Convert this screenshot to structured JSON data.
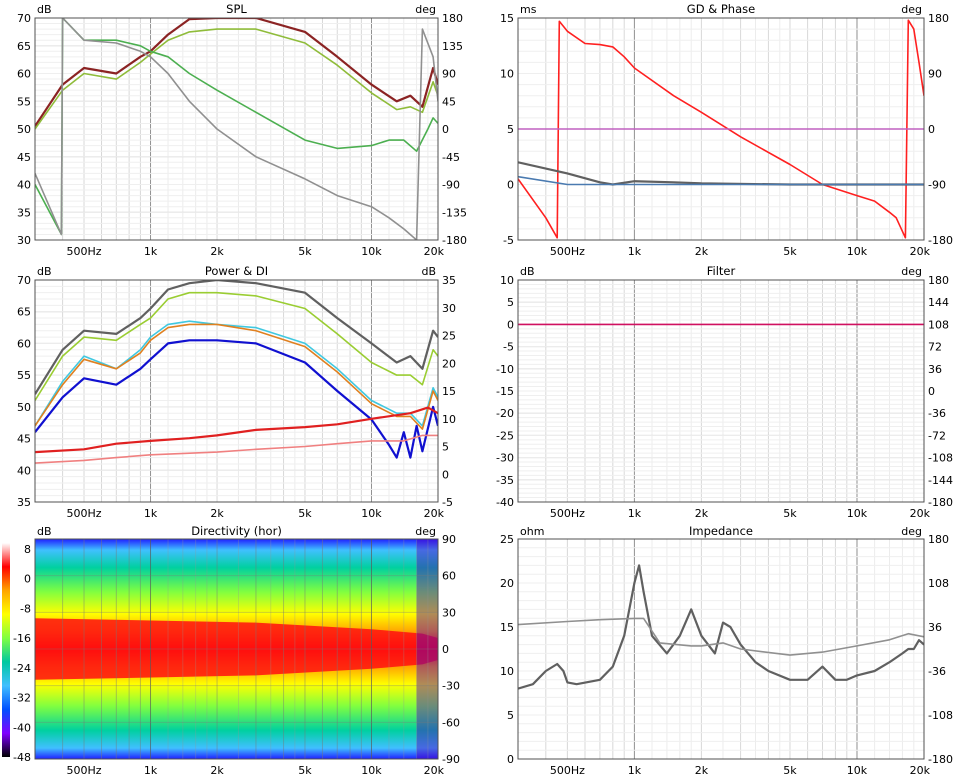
{
  "chart_data": [
    {
      "id": "spl",
      "type": "line",
      "title": "SPL",
      "ylabel": "dB",
      "y2label": "deg",
      "xscale": "log",
      "xlim": [
        300,
        20000
      ],
      "ylim": [
        30,
        70
      ],
      "y2lim": [
        -180,
        180
      ],
      "xticks": [
        "500Hz",
        "1k",
        "2k",
        "5k",
        "10k",
        "20k"
      ],
      "yticks": [
        "70",
        "65",
        "60",
        "55",
        "50",
        "45",
        "40",
        "35",
        "30"
      ],
      "y2ticks": [
        "180",
        "135",
        "90",
        "45",
        "0",
        "-45",
        "-90",
        "-135",
        "-180"
      ],
      "grid": true,
      "series": [
        {
          "color": "#8b2323",
          "axis": "y",
          "x": [
            300,
            400,
            500,
            700,
            900,
            1000,
            1200,
            1500,
            2000,
            3000,
            5000,
            7000,
            10000,
            13000,
            15000,
            17000,
            19000,
            20000
          ],
          "values": [
            50.5,
            58,
            61,
            60,
            63,
            64,
            67,
            69.8,
            70,
            70,
            67.5,
            63,
            58,
            55,
            56,
            54,
            61,
            58
          ]
        },
        {
          "color": "#8fbc3a",
          "axis": "y",
          "x": [
            300,
            400,
            500,
            700,
            900,
            1000,
            1200,
            1500,
            2000,
            3000,
            5000,
            7000,
            10000,
            13000,
            15000,
            17000,
            19000,
            20000
          ],
          "values": [
            50,
            57,
            60,
            59,
            62,
            63.5,
            66,
            67.5,
            68,
            68,
            65.5,
            61.5,
            56.5,
            53.5,
            54,
            53,
            58.5,
            56
          ]
        },
        {
          "color": "#4caf50",
          "axis": "y",
          "x": [
            300,
            395,
            400,
            500,
            700,
            900,
            1000,
            1200,
            1500,
            2000,
            3000,
            5000,
            7000,
            10000,
            12000,
            14000,
            16000,
            18000,
            19000,
            20000
          ],
          "values": [
            40,
            31,
            70,
            66,
            66,
            65,
            64,
            63,
            60,
            57,
            53,
            48,
            46.5,
            47,
            48,
            48,
            46,
            50,
            52,
            51
          ]
        },
        {
          "color": "#909090",
          "axis": "y",
          "x": [
            300,
            395,
            400,
            500,
            700,
            900,
            1000,
            1200,
            1500,
            2000,
            3000,
            5000,
            7000,
            10000,
            12000,
            14000,
            16000,
            17000,
            19000,
            20000
          ],
          "values": [
            42,
            31,
            70,
            66,
            65.5,
            64,
            63,
            60,
            55,
            50,
            45,
            41,
            38,
            36,
            34,
            32,
            30,
            68,
            63,
            55
          ]
        }
      ]
    },
    {
      "id": "gd_phase",
      "type": "line",
      "title": "GD & Phase",
      "ylabel": "ms",
      "y2label": "deg",
      "xscale": "log",
      "xlim": [
        300,
        20000
      ],
      "ylim": [
        -5,
        15
      ],
      "y2lim": [
        -180,
        180
      ],
      "xticks": [
        "500Hz",
        "1k",
        "2k",
        "5k",
        "10k",
        "20k"
      ],
      "yticks": [
        "15",
        "10",
        "5",
        "0",
        "-5"
      ],
      "y2ticks": [
        "180",
        "90",
        "0",
        "-90",
        "-180"
      ],
      "grid": true,
      "series": [
        {
          "color": "#ff2020",
          "axis": "y",
          "x": [
            300,
            400,
            450,
            460,
            500,
            600,
            700,
            800,
            900,
            1000,
            1500,
            2000,
            3000,
            5000,
            7000,
            10000,
            12000,
            14000,
            15000,
            16500,
            17000,
            18000,
            19000,
            20000
          ],
          "values": [
            0.5,
            -3,
            -4.8,
            14.7,
            13.8,
            12.7,
            12.6,
            12.4,
            11.5,
            10.5,
            8,
            6.5,
            4.3,
            1.8,
            0,
            -1,
            -1.5,
            -2.5,
            -3,
            -4.8,
            14.8,
            14,
            11,
            8
          ]
        },
        {
          "color": "#c060c0",
          "axis": "y",
          "x": [
            300,
            20000
          ],
          "values": [
            5,
            5
          ]
        },
        {
          "color": "#606060",
          "axis": "y",
          "x": [
            300,
            500,
            700,
            800,
            1000,
            1500,
            2000,
            5000,
            10000,
            20000
          ],
          "values": [
            2,
            1,
            0.2,
            0,
            0.3,
            0.2,
            0.1,
            0,
            0,
            0
          ]
        },
        {
          "color": "#4a7ab0",
          "axis": "y",
          "x": [
            300,
            500,
            700,
            1000,
            20000
          ],
          "values": [
            0.7,
            0,
            0,
            0,
            0
          ]
        }
      ]
    },
    {
      "id": "power_di",
      "type": "line",
      "title": "Power & DI",
      "ylabel": "dB",
      "y2label": "dB",
      "xscale": "log",
      "xlim": [
        300,
        20000
      ],
      "ylim": [
        35,
        70
      ],
      "y2lim": [
        -5,
        35
      ],
      "xticks": [
        "500Hz",
        "1k",
        "2k",
        "5k",
        "10k",
        "20k"
      ],
      "yticks": [
        "70",
        "65",
        "60",
        "55",
        "50",
        "45",
        "40",
        "35"
      ],
      "y2ticks": [
        "35",
        "30",
        "25",
        "20",
        "15",
        "10",
        "5",
        "0",
        "-5"
      ],
      "grid": true,
      "series": [
        {
          "color": "#606060",
          "axis": "y",
          "x": [
            300,
            400,
            500,
            700,
            900,
            1000,
            1200,
            1500,
            2000,
            3000,
            5000,
            7000,
            10000,
            13000,
            15000,
            17000,
            19000,
            20000
          ],
          "values": [
            52,
            59,
            62,
            61.5,
            64,
            65.5,
            68.5,
            69.5,
            70,
            69.5,
            68,
            64,
            60,
            57,
            58,
            56,
            62,
            61
          ]
        },
        {
          "color": "#9acd32",
          "axis": "y",
          "x": [
            300,
            400,
            500,
            700,
            900,
            1000,
            1200,
            1500,
            2000,
            3000,
            5000,
            7000,
            10000,
            13000,
            15000,
            17000,
            19000,
            20000
          ],
          "values": [
            51,
            58,
            61,
            60.5,
            63,
            64,
            67,
            68,
            68,
            67.5,
            65.5,
            61.5,
            57,
            55,
            55,
            53.5,
            59,
            58
          ]
        },
        {
          "color": "#40c8e0",
          "axis": "y",
          "x": [
            300,
            400,
            500,
            700,
            900,
            1000,
            1200,
            1500,
            2000,
            3000,
            5000,
            7000,
            10000,
            13000,
            15000,
            17000,
            19000,
            20000
          ],
          "values": [
            47,
            54,
            58,
            56,
            59,
            61,
            63,
            63.5,
            63,
            62.5,
            60,
            56,
            51,
            49,
            49,
            47,
            53,
            51.5
          ]
        },
        {
          "color": "#e08020",
          "axis": "y",
          "x": [
            300,
            400,
            500,
            700,
            900,
            1000,
            1200,
            1500,
            2000,
            3000,
            5000,
            7000,
            10000,
            13000,
            15000,
            17000,
            19000,
            20000
          ],
          "values": [
            47,
            53.5,
            57.5,
            56,
            58.5,
            60.5,
            62.5,
            63,
            63,
            62,
            59.5,
            55.5,
            50.5,
            48.5,
            48.5,
            46.5,
            52.5,
            51
          ]
        },
        {
          "color": "#1010d0",
          "axis": "y",
          "x": [
            300,
            400,
            500,
            700,
            900,
            1000,
            1200,
            1500,
            2000,
            3000,
            5000,
            7000,
            10000,
            12000,
            13000,
            14000,
            15000,
            16000,
            17000,
            19000,
            20000
          ],
          "values": [
            46,
            51.5,
            54.5,
            53.5,
            56,
            57.5,
            60,
            60.5,
            60.5,
            60,
            57,
            52.5,
            48,
            44,
            42,
            46,
            42,
            47,
            43,
            50,
            47
          ]
        },
        {
          "color": "#e02020",
          "axis": "y2",
          "x": [
            300,
            500,
            700,
            1000,
            1500,
            2000,
            3000,
            5000,
            7000,
            10000,
            15000,
            18000,
            20000
          ],
          "values": [
            4,
            4.5,
            5.5,
            6,
            6.5,
            7,
            8,
            8.5,
            9,
            10,
            11,
            12,
            11
          ]
        },
        {
          "color": "#f08080",
          "axis": "y2",
          "x": [
            300,
            500,
            700,
            1000,
            2000,
            3000,
            5000,
            7000,
            10000,
            14000,
            17000,
            20000
          ],
          "values": [
            2,
            2.5,
            3,
            3.5,
            4,
            4.5,
            5,
            5.5,
            6,
            6,
            7,
            7
          ]
        }
      ]
    },
    {
      "id": "filter",
      "type": "line",
      "title": "Filter",
      "ylabel": "dB",
      "y2label": "deg",
      "xscale": "log",
      "xlim": [
        300,
        20000
      ],
      "ylim": [
        -40,
        10
      ],
      "y2lim": [
        -180,
        180
      ],
      "xticks": [
        "500Hz",
        "1k",
        "2k",
        "5k",
        "10k",
        "20k"
      ],
      "yticks": [
        "10",
        "5",
        "0",
        "-5",
        "-10",
        "-15",
        "-20",
        "-25",
        "-30",
        "-35",
        "-40"
      ],
      "y2ticks": [
        "180",
        "144",
        "108",
        "72",
        "36",
        "0",
        "-36",
        "-72",
        "-108",
        "-144",
        "-180"
      ],
      "grid": true,
      "series": [
        {
          "color": "#d01060",
          "axis": "y",
          "x": [
            300,
            20000
          ],
          "values": [
            0,
            0
          ]
        }
      ]
    },
    {
      "id": "directivity",
      "type": "heatmap",
      "title": "Directivity (hor)",
      "ylabel": "dB",
      "y2label": "deg",
      "xscale": "log",
      "xlim": [
        300,
        20000
      ],
      "y2lim": [
        -90,
        90
      ],
      "xticks": [
        "500Hz",
        "1k",
        "2k",
        "5k",
        "10k",
        "20k"
      ],
      "scale_ticks": [
        "8",
        "0",
        "-8",
        "-16",
        "-24",
        "-32",
        "-40",
        "-48"
      ],
      "y2ticks": [
        "90",
        "60",
        "30",
        "0",
        "-30",
        "-60",
        "-90"
      ],
      "colorscale": [
        "#ffffff",
        "#ff0000",
        "#ffa500",
        "#ffff00",
        "#80ff40",
        "#00c8a0",
        "#40c0ff",
        "#0050ff",
        "#8000ff",
        "#000000"
      ],
      "grid": true
    },
    {
      "id": "impedance",
      "type": "line",
      "title": "Impedance",
      "ylabel": "ohm",
      "y2label": "deg",
      "xscale": "log",
      "xlim": [
        300,
        20000
      ],
      "ylim": [
        0,
        25
      ],
      "y2lim": [
        -180,
        180
      ],
      "xticks": [
        "500Hz",
        "1k",
        "2k",
        "5k",
        "10k",
        "20k"
      ],
      "yticks": [
        "25",
        "20",
        "15",
        "10",
        "5",
        "0"
      ],
      "y2ticks": [
        "180",
        "108",
        "36",
        "-36",
        "-108",
        "-180"
      ],
      "grid": true,
      "series": [
        {
          "color": "#606060",
          "axis": "y",
          "x": [
            300,
            350,
            400,
            450,
            480,
            500,
            550,
            700,
            800,
            900,
            1000,
            1050,
            1100,
            1200,
            1400,
            1600,
            1800,
            2000,
            2300,
            2500,
            2700,
            3000,
            3500,
            4000,
            5000,
            6000,
            7000,
            8000,
            9000,
            10000,
            12000,
            14000,
            16000,
            17000,
            18000,
            19000,
            20000
          ],
          "values": [
            8,
            8.5,
            10,
            10.8,
            10,
            8.7,
            8.5,
            9,
            10.5,
            14,
            20,
            22,
            19,
            14,
            12,
            14,
            17,
            14,
            12,
            15.5,
            15,
            13,
            11,
            10,
            9,
            9,
            10.5,
            9,
            9,
            9.5,
            10,
            11,
            12,
            12.5,
            12.5,
            13.5,
            13
          ]
        },
        {
          "color": "#909090",
          "axis": "y2",
          "x": [
            300,
            500,
            700,
            1000,
            1100,
            1300,
            1800,
            2000,
            2500,
            3000,
            5000,
            7000,
            10000,
            14000,
            17000,
            20000
          ],
          "values": [
            40,
            45,
            48,
            50,
            50,
            10,
            5,
            5,
            10,
            0,
            -10,
            -5,
            5,
            15,
            25,
            20
          ]
        }
      ]
    }
  ]
}
